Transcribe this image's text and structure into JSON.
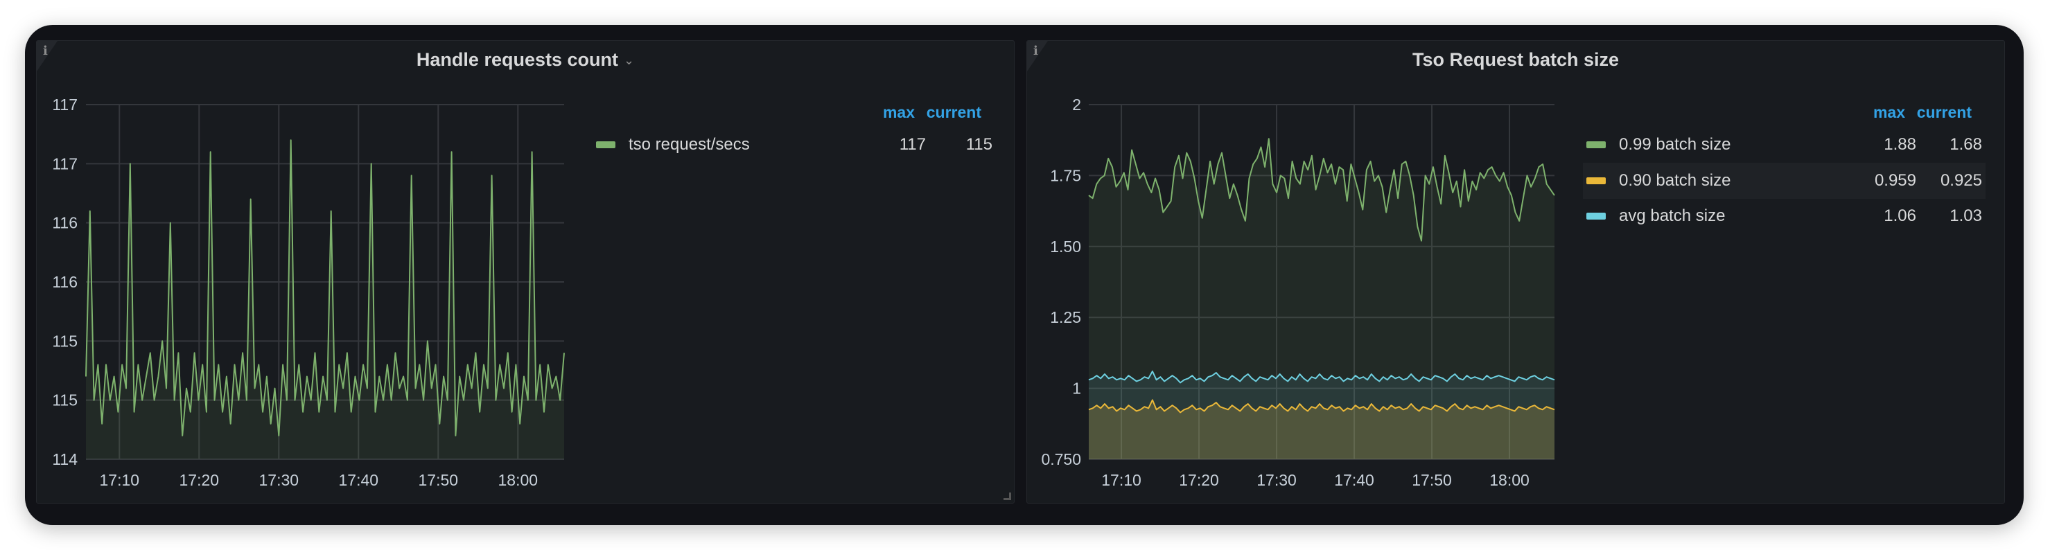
{
  "panels": [
    {
      "title": "Handle requests count",
      "legend": {
        "headers": {
          "max": "max",
          "current": "current"
        },
        "rows": [
          {
            "label": "tso request/secs",
            "max": "117",
            "current": "115",
            "color": "#7eb26d"
          }
        ]
      }
    },
    {
      "title": "Tso Request batch size",
      "legend": {
        "headers": {
          "max": "max",
          "current": "current"
        },
        "rows": [
          {
            "label": "0.99 batch size",
            "max": "1.88",
            "current": "1.68",
            "color": "#7eb26d"
          },
          {
            "label": "0.90 batch size",
            "max": "0.959",
            "current": "0.925",
            "color": "#eab839"
          },
          {
            "label": "avg batch size",
            "max": "1.06",
            "current": "1.03",
            "color": "#6ed0e0"
          }
        ]
      }
    }
  ],
  "chart_data": [
    {
      "type": "line",
      "title": "Handle requests count",
      "x_range_minutes": [
        5.8,
        65.8
      ],
      "x_ticks": [
        {
          "label": "17:10",
          "min": 10
        },
        {
          "label": "17:20",
          "min": 20
        },
        {
          "label": "17:30",
          "min": 30
        },
        {
          "label": "17:40",
          "min": 40
        },
        {
          "label": "17:50",
          "min": 50
        },
        {
          "label": "18:00",
          "min": 60
        }
      ],
      "y_ticks": [
        {
          "label": "114",
          "v": 114
        },
        {
          "label": "115",
          "v": 114.5
        },
        {
          "label": "115",
          "v": 115
        },
        {
          "label": "116",
          "v": 115.5
        },
        {
          "label": "116",
          "v": 116
        },
        {
          "label": "117",
          "v": 116.5
        },
        {
          "label": "117",
          "v": 117
        }
      ],
      "ylim": [
        114,
        117
      ],
      "grid": true,
      "legend": "right",
      "series": [
        {
          "name": "tso request/secs",
          "color": "#7eb26d",
          "values": [
            114.7,
            116.1,
            114.5,
            114.8,
            114.3,
            114.8,
            114.5,
            114.7,
            114.4,
            114.8,
            114.6,
            116.5,
            114.4,
            114.8,
            114.5,
            114.7,
            114.9,
            114.5,
            114.7,
            115.0,
            114.6,
            116.0,
            114.5,
            114.9,
            114.2,
            114.6,
            114.4,
            114.9,
            114.5,
            114.8,
            114.4,
            116.6,
            114.5,
            114.8,
            114.4,
            114.7,
            114.3,
            114.8,
            114.5,
            114.9,
            114.5,
            116.2,
            114.6,
            114.8,
            114.4,
            114.7,
            114.3,
            114.6,
            114.2,
            114.8,
            114.5,
            116.7,
            114.5,
            114.8,
            114.4,
            114.7,
            114.5,
            114.9,
            114.4,
            114.7,
            114.5,
            116.1,
            114.4,
            114.8,
            114.6,
            114.9,
            114.4,
            114.7,
            114.5,
            114.8,
            114.6,
            116.5,
            114.4,
            114.7,
            114.5,
            114.8,
            114.5,
            114.9,
            114.6,
            114.7,
            114.5,
            116.4,
            114.6,
            114.8,
            114.5,
            115.0,
            114.6,
            114.8,
            114.3,
            114.7,
            114.5,
            116.6,
            114.2,
            114.7,
            114.5,
            114.8,
            114.6,
            114.9,
            114.4,
            114.8,
            114.6,
            116.4,
            114.5,
            114.8,
            114.6,
            114.9,
            114.4,
            114.8,
            114.3,
            114.7,
            114.5,
            116.6,
            114.5,
            114.8,
            114.4,
            114.8,
            114.6,
            114.7,
            114.5,
            114.9
          ]
        }
      ]
    },
    {
      "type": "line",
      "title": "Tso Request batch size",
      "x_range_minutes": [
        5.8,
        65.8
      ],
      "x_ticks": [
        {
          "label": "17:10",
          "min": 10
        },
        {
          "label": "17:20",
          "min": 20
        },
        {
          "label": "17:30",
          "min": 30
        },
        {
          "label": "17:40",
          "min": 40
        },
        {
          "label": "17:50",
          "min": 50
        },
        {
          "label": "18:00",
          "min": 60
        }
      ],
      "y_ticks": [
        {
          "label": "0.750",
          "v": 0.75
        },
        {
          "label": "1",
          "v": 1
        },
        {
          "label": "1.25",
          "v": 1.25
        },
        {
          "label": "1.50",
          "v": 1.5
        },
        {
          "label": "1.75",
          "v": 1.75
        },
        {
          "label": "2",
          "v": 2
        }
      ],
      "ylim": [
        0.75,
        2
      ],
      "grid": true,
      "legend": "right",
      "series": [
        {
          "name": "0.99 batch size",
          "color": "#7eb26d",
          "values": [
            1.68,
            1.67,
            1.72,
            1.74,
            1.75,
            1.81,
            1.78,
            1.71,
            1.73,
            1.76,
            1.7,
            1.84,
            1.79,
            1.74,
            1.76,
            1.72,
            1.69,
            1.74,
            1.7,
            1.62,
            1.64,
            1.66,
            1.78,
            1.82,
            1.74,
            1.83,
            1.8,
            1.74,
            1.66,
            1.6,
            1.7,
            1.8,
            1.72,
            1.79,
            1.83,
            1.75,
            1.67,
            1.72,
            1.68,
            1.63,
            1.59,
            1.74,
            1.79,
            1.81,
            1.85,
            1.78,
            1.88,
            1.72,
            1.69,
            1.75,
            1.74,
            1.67,
            1.8,
            1.74,
            1.72,
            1.8,
            1.77,
            1.82,
            1.7,
            1.75,
            1.81,
            1.76,
            1.79,
            1.72,
            1.78,
            1.77,
            1.66,
            1.79,
            1.74,
            1.69,
            1.63,
            1.77,
            1.8,
            1.73,
            1.75,
            1.71,
            1.62,
            1.7,
            1.77,
            1.67,
            1.79,
            1.8,
            1.75,
            1.68,
            1.57,
            1.52,
            1.75,
            1.72,
            1.78,
            1.71,
            1.65,
            1.82,
            1.76,
            1.69,
            1.73,
            1.64,
            1.77,
            1.66,
            1.73,
            1.7,
            1.76,
            1.74,
            1.77,
            1.78,
            1.75,
            1.73,
            1.76,
            1.71,
            1.68,
            1.62,
            1.59,
            1.67,
            1.75,
            1.71,
            1.74,
            1.78,
            1.79,
            1.72,
            1.7,
            1.68
          ]
        },
        {
          "name": "0.90 batch size",
          "color": "#eab839",
          "values": [
            0.925,
            0.93,
            0.94,
            0.93,
            0.945,
            0.93,
            0.935,
            0.92,
            0.93,
            0.925,
            0.94,
            0.93,
            0.92,
            0.925,
            0.935,
            0.93,
            0.959,
            0.925,
            0.935,
            0.92,
            0.93,
            0.94,
            0.93,
            0.915,
            0.925,
            0.93,
            0.94,
            0.925,
            0.93,
            0.92,
            0.935,
            0.94,
            0.95,
            0.935,
            0.93,
            0.925,
            0.94,
            0.93,
            0.92,
            0.935,
            0.945,
            0.93,
            0.92,
            0.935,
            0.93,
            0.925,
            0.94,
            0.93,
            0.945,
            0.93,
            0.92,
            0.935,
            0.925,
            0.945,
            0.93,
            0.92,
            0.935,
            0.93,
            0.945,
            0.93,
            0.925,
            0.94,
            0.93,
            0.935,
            0.92,
            0.93,
            0.925,
            0.94,
            0.93,
            0.935,
            0.925,
            0.945,
            0.93,
            0.92,
            0.935,
            0.925,
            0.94,
            0.93,
            0.935,
            0.925,
            0.93,
            0.945,
            0.93,
            0.92,
            0.935,
            0.93,
            0.925,
            0.94,
            0.935,
            0.93,
            0.92,
            0.935,
            0.945,
            0.93,
            0.925,
            0.94,
            0.93,
            0.935,
            0.93,
            0.925,
            0.94,
            0.93,
            0.935,
            0.94,
            0.935,
            0.93,
            0.925,
            0.92,
            0.935,
            0.93,
            0.925,
            0.935,
            0.94,
            0.93,
            0.925,
            0.935,
            0.93,
            0.925
          ]
        },
        {
          "name": "avg batch size",
          "color": "#6ed0e0",
          "values": [
            1.03,
            1.035,
            1.045,
            1.035,
            1.05,
            1.035,
            1.04,
            1.03,
            1.035,
            1.03,
            1.045,
            1.035,
            1.025,
            1.03,
            1.04,
            1.035,
            1.06,
            1.03,
            1.04,
            1.025,
            1.035,
            1.045,
            1.035,
            1.02,
            1.03,
            1.035,
            1.045,
            1.03,
            1.035,
            1.025,
            1.04,
            1.045,
            1.055,
            1.04,
            1.035,
            1.03,
            1.045,
            1.035,
            1.025,
            1.04,
            1.05,
            1.035,
            1.025,
            1.04,
            1.035,
            1.03,
            1.045,
            1.035,
            1.05,
            1.035,
            1.025,
            1.04,
            1.03,
            1.05,
            1.035,
            1.025,
            1.04,
            1.035,
            1.05,
            1.035,
            1.03,
            1.045,
            1.035,
            1.04,
            1.025,
            1.035,
            1.03,
            1.045,
            1.035,
            1.04,
            1.03,
            1.05,
            1.035,
            1.025,
            1.04,
            1.03,
            1.045,
            1.035,
            1.04,
            1.03,
            1.035,
            1.05,
            1.035,
            1.025,
            1.04,
            1.035,
            1.03,
            1.045,
            1.04,
            1.035,
            1.025,
            1.04,
            1.05,
            1.035,
            1.03,
            1.045,
            1.035,
            1.04,
            1.035,
            1.03,
            1.045,
            1.035,
            1.04,
            1.045,
            1.04,
            1.035,
            1.03,
            1.025,
            1.04,
            1.035,
            1.03,
            1.04,
            1.045,
            1.035,
            1.03,
            1.04,
            1.035,
            1.03
          ]
        }
      ]
    }
  ]
}
